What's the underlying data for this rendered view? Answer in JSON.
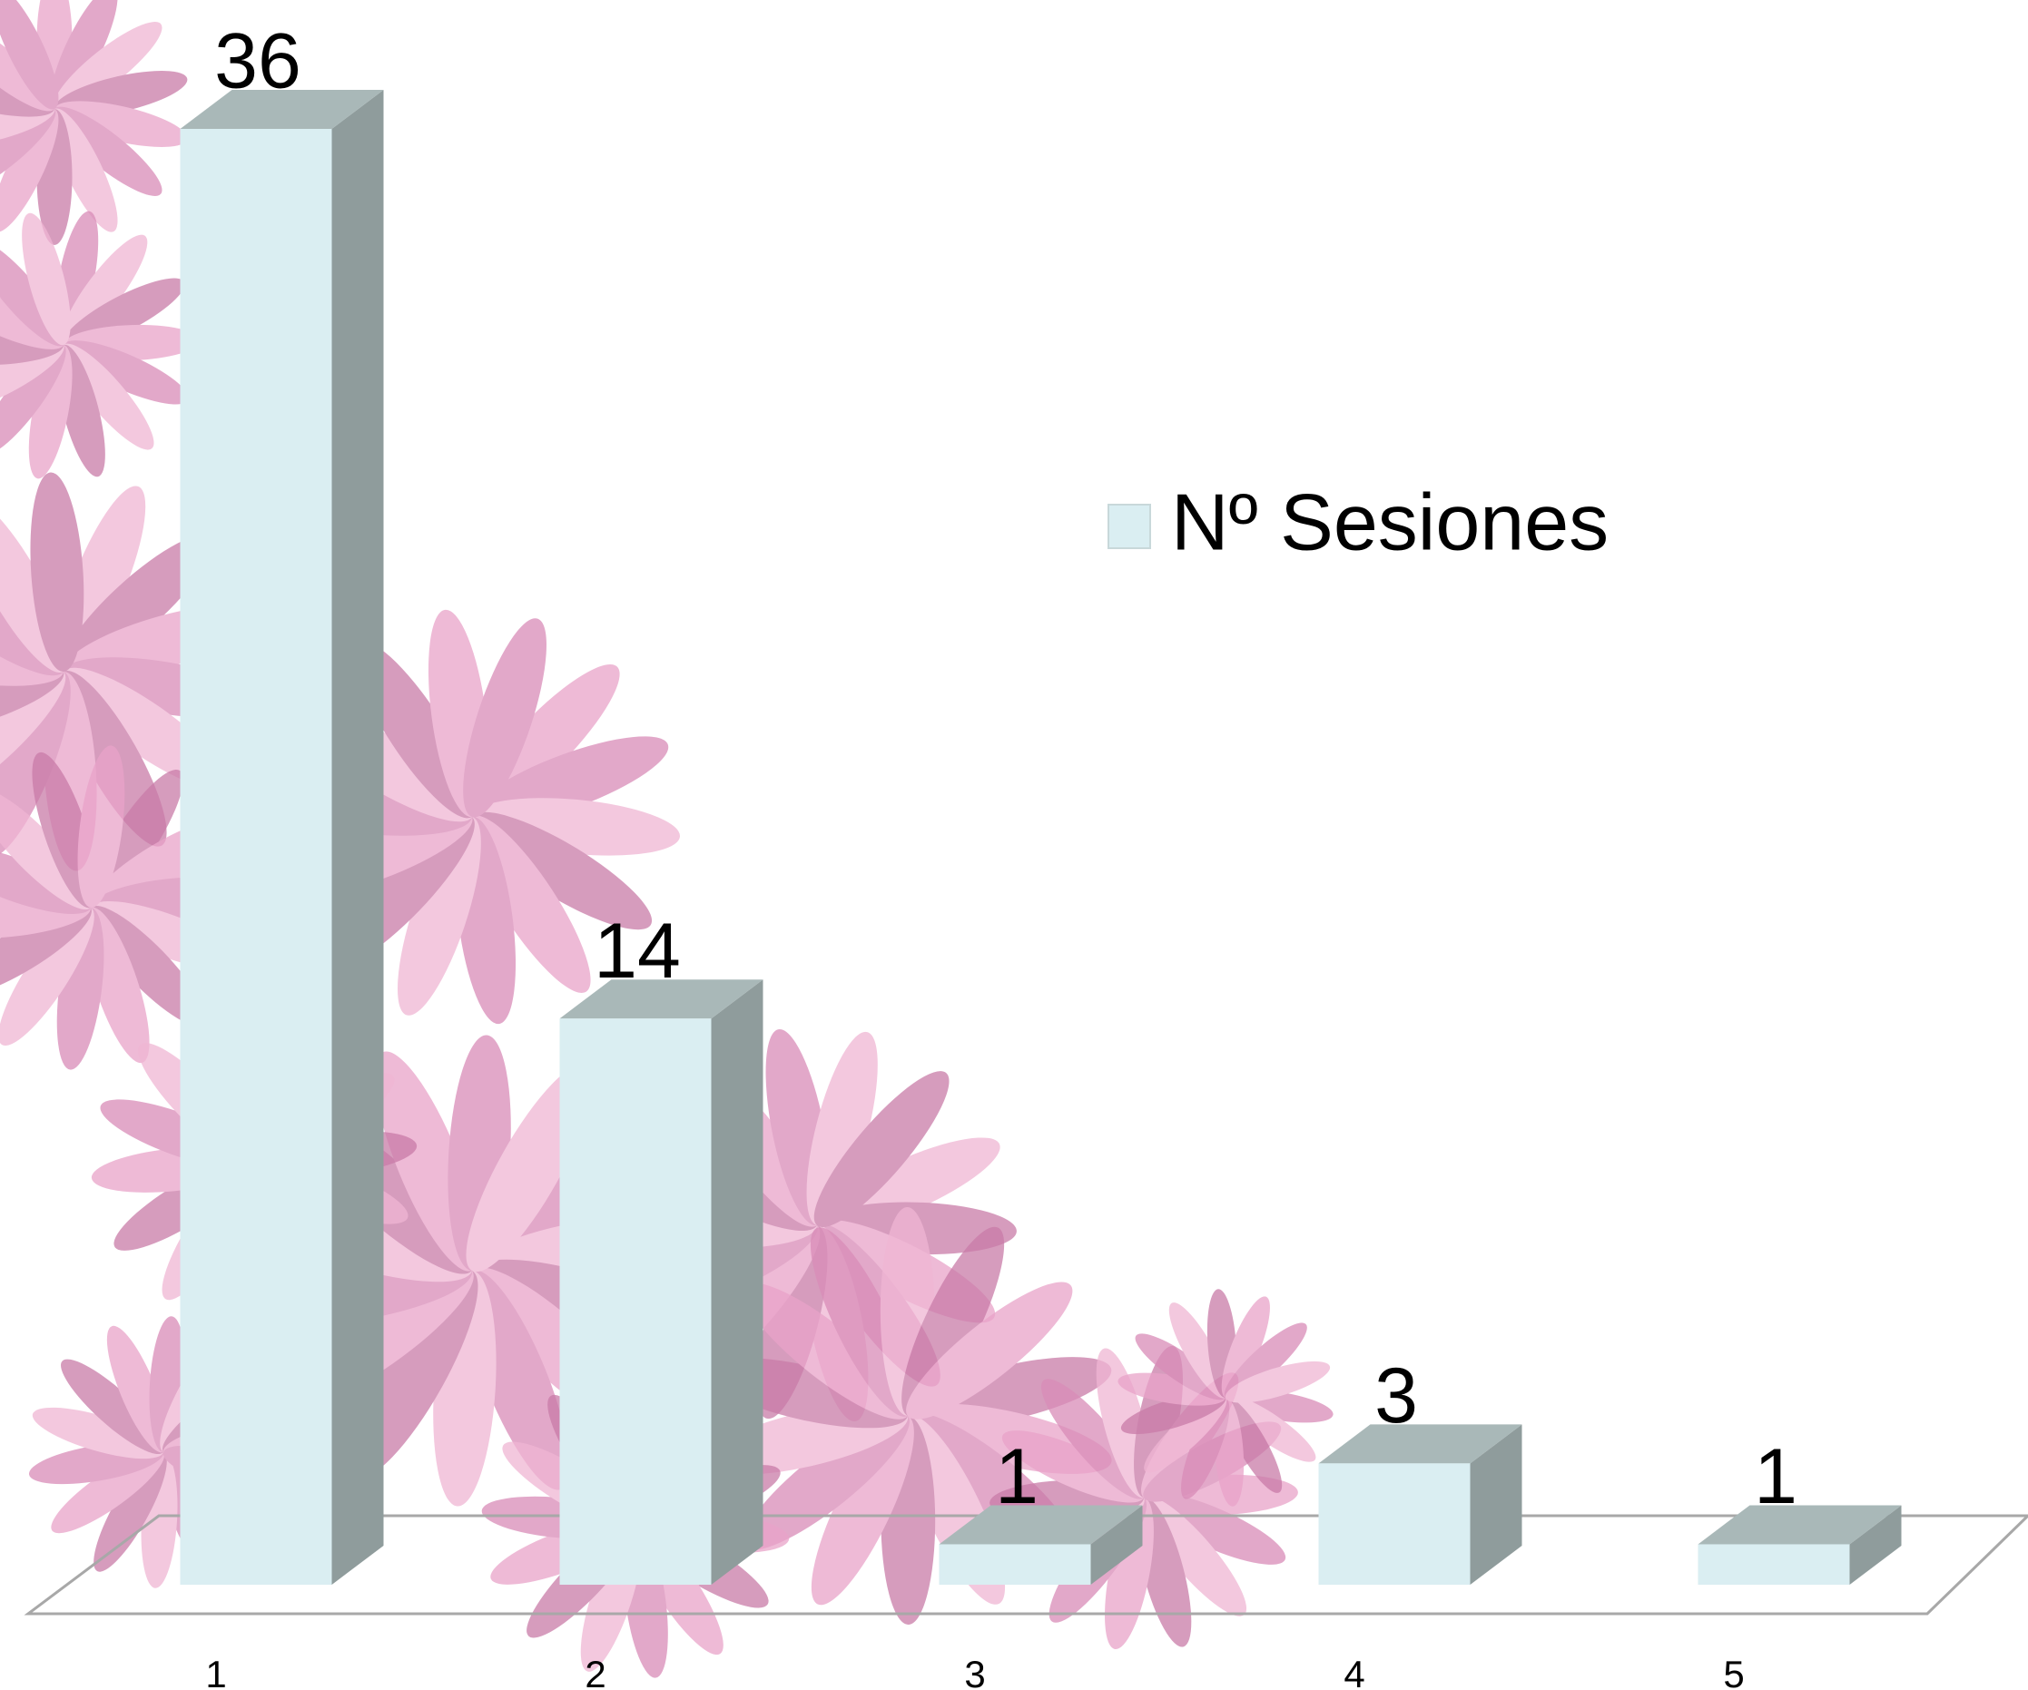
{
  "chart_data": {
    "type": "bar3d",
    "categories": [
      "1",
      "2",
      "3",
      "4",
      "5"
    ],
    "series": [
      {
        "name": "Nº Sesiones",
        "color": "#daeef2",
        "values": [
          36,
          14,
          1,
          3,
          1
        ]
      }
    ]
  }
}
